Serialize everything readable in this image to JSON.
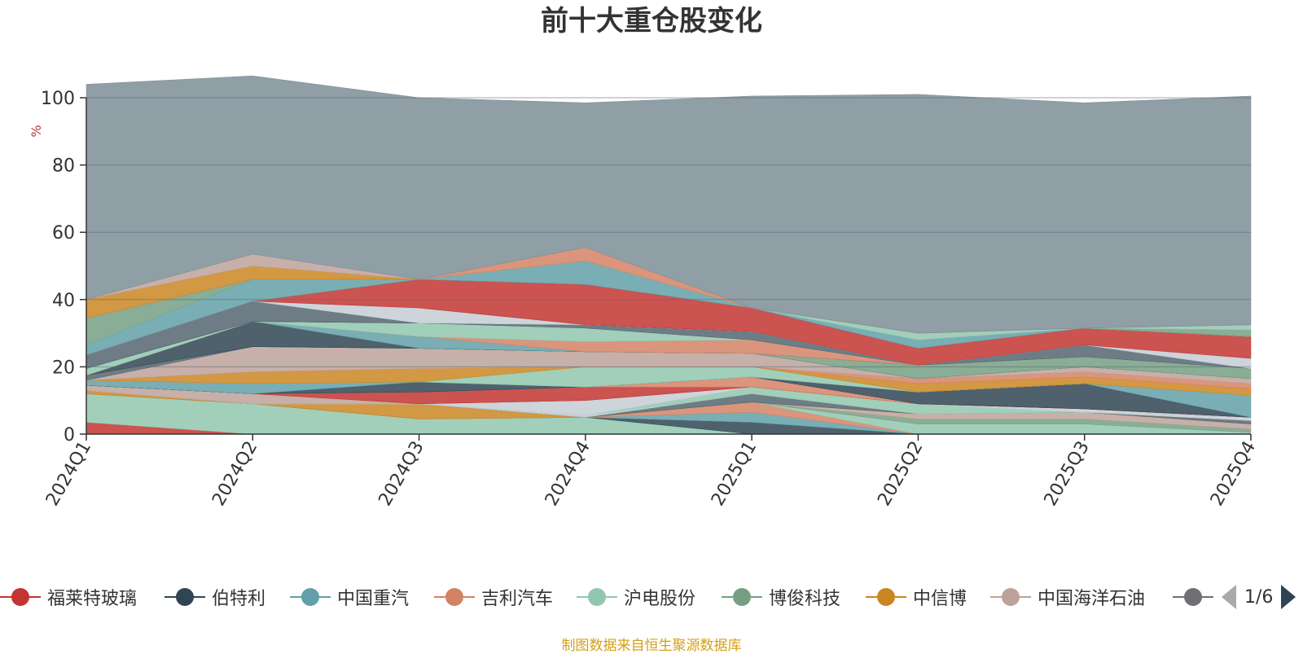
{
  "title": "前十大重仓股变化",
  "source": "制图数据来自恒生聚源数据库",
  "pager": "1/6",
  "chart_data": {
    "type": "area",
    "stacked": true,
    "ylabel": "%",
    "ylim": [
      0,
      100
    ],
    "yticks": [
      0,
      20,
      40,
      60,
      80,
      100
    ],
    "categories": [
      "2024Q1",
      "2024Q2",
      "2024Q3",
      "2024Q4",
      "2025Q1",
      "2025Q2",
      "2025Q3",
      "2025Q4"
    ],
    "series": [
      {
        "name": "福莱特玻璃",
        "color": "#c23531",
        "values": [
          3.5,
          0,
          0,
          0,
          0,
          0,
          0,
          0
        ]
      },
      {
        "name": "",
        "color": "#91c7ae",
        "values": [
          8.5,
          9,
          4.5,
          5,
          0,
          0,
          0,
          0
        ]
      },
      {
        "name": "",
        "color": "#2f4554",
        "values": [
          0,
          0,
          0,
          0,
          3.5,
          0,
          0,
          0
        ]
      },
      {
        "name": "",
        "color": "#61a0a8",
        "values": [
          0,
          0,
          0,
          0,
          3,
          0,
          0,
          0
        ]
      },
      {
        "name": "",
        "color": "#d48265",
        "values": [
          0,
          0,
          0,
          0,
          3,
          0,
          0,
          0
        ]
      },
      {
        "name": "",
        "color": "#91c7ae",
        "values": [
          0,
          0,
          0,
          0,
          0,
          3,
          3,
          0.5
        ]
      },
      {
        "name": "",
        "color": "#749f83",
        "values": [
          0,
          0,
          0,
          0,
          0,
          1.5,
          1.5,
          1
        ]
      },
      {
        "name": "",
        "color": "#bda29a",
        "values": [
          0,
          0,
          0,
          0,
          0,
          1.5,
          2,
          1.5
        ]
      },
      {
        "name": "",
        "color": "#ca8622",
        "values": [
          1,
          0,
          4.5,
          0,
          0,
          0,
          0,
          0
        ]
      },
      {
        "name": "",
        "color": "#546570",
        "values": [
          0,
          0,
          0,
          0,
          2.5,
          0,
          0,
          1
        ]
      },
      {
        "name": "",
        "color": "#c4ccd3",
        "values": [
          0,
          0,
          0,
          0.5,
          0,
          0,
          0,
          1
        ]
      },
      {
        "name": "",
        "color": "#91c7ae",
        "values": [
          0,
          0,
          0,
          0,
          2,
          3,
          0,
          0
        ]
      },
      {
        "name": "",
        "color": "#c4ccd3",
        "values": [
          0,
          0,
          0,
          4.5,
          0,
          0,
          0,
          0
        ]
      },
      {
        "name": "",
        "color": "#c4ccd3",
        "values": [
          0,
          0,
          0,
          0,
          0,
          0,
          1,
          0
        ]
      },
      {
        "name": "",
        "color": "#bda29a",
        "values": [
          1.5,
          3,
          0,
          0,
          0,
          0,
          0,
          0
        ]
      },
      {
        "name": "",
        "color": "#c23531",
        "values": [
          0,
          0,
          3.5,
          4,
          0,
          0,
          0,
          0
        ]
      },
      {
        "name": "",
        "color": "#d48265",
        "values": [
          0,
          0,
          0,
          0,
          3,
          0,
          0,
          0
        ]
      },
      {
        "name": "",
        "color": "#2f4554",
        "values": [
          0,
          0,
          3,
          0,
          0,
          3.5,
          7.5,
          0
        ]
      },
      {
        "name": "",
        "color": "#61a0a8",
        "values": [
          1.5,
          3,
          0,
          0,
          0,
          0,
          0,
          6.5
        ]
      },
      {
        "name": "",
        "color": "#91c7ae",
        "values": [
          0,
          0,
          0,
          6,
          3,
          0,
          0,
          0
        ]
      },
      {
        "name": "",
        "color": "#ca8622",
        "values": [
          0,
          3.5,
          4,
          0,
          0,
          2.5,
          2,
          2
        ]
      },
      {
        "name": "",
        "color": "#d48265",
        "values": [
          0,
          0,
          0,
          0,
          0,
          1.5,
          1.5,
          1.5
        ]
      },
      {
        "name": "",
        "color": "#bda29a",
        "values": [
          0,
          7.5,
          6,
          4.5,
          4,
          0,
          1.5,
          1.5
        ]
      },
      {
        "name": "",
        "color": "#546570",
        "values": [
          1.5,
          0,
          0,
          0,
          0,
          0,
          0,
          0
        ]
      },
      {
        "name": "",
        "color": "#749f83",
        "values": [
          0,
          0,
          0,
          0,
          0,
          4,
          3,
          3
        ]
      },
      {
        "name": "",
        "color": "#2f4554",
        "values": [
          0,
          7.5,
          0,
          0,
          0,
          0,
          0,
          0
        ]
      },
      {
        "name": "",
        "color": "#61a0a8",
        "values": [
          0,
          0,
          3.5,
          0,
          0,
          0,
          0,
          0
        ]
      },
      {
        "name": "",
        "color": "#d48265",
        "values": [
          0,
          0,
          0,
          3,
          4,
          0,
          0,
          0
        ]
      },
      {
        "name": "",
        "color": "#91c7ae",
        "values": [
          2,
          0,
          4,
          4,
          0,
          0,
          0,
          0
        ]
      },
      {
        "name": "",
        "color": "#546570",
        "values": [
          0,
          0,
          0,
          1,
          2.5,
          0,
          3.5,
          0
        ]
      },
      {
        "name": "",
        "color": "#546570",
        "values": [
          4,
          6,
          0,
          0,
          0,
          0,
          0,
          0
        ]
      },
      {
        "name": "",
        "color": "#c4ccd3",
        "values": [
          0,
          0,
          4.5,
          0,
          0,
          0,
          0,
          0
        ]
      },
      {
        "name": "",
        "color": "#c4ccd3",
        "values": [
          0,
          0,
          0,
          0,
          0,
          0,
          0,
          3
        ]
      },
      {
        "name": "",
        "color": "#c23531",
        "values": [
          0,
          0,
          8.5,
          12,
          7,
          5,
          5,
          6.5
        ]
      },
      {
        "name": "",
        "color": "#61a0a8",
        "values": [
          3,
          6.5,
          0,
          7,
          0,
          2.5,
          0,
          0
        ]
      },
      {
        "name": "",
        "color": "#91c7ae",
        "values": [
          0,
          0,
          0,
          0,
          0,
          2,
          0,
          0
        ]
      },
      {
        "name": "",
        "color": "#749f83",
        "values": [
          8,
          0,
          0,
          0,
          0,
          0,
          0,
          2
        ]
      },
      {
        "name": "",
        "color": "#91c7ae",
        "values": [
          0,
          0,
          0,
          0,
          0,
          0,
          0,
          1.5
        ]
      },
      {
        "name": "",
        "color": "#d48265",
        "values": [
          0,
          0,
          0,
          4,
          0,
          0,
          0,
          0
        ]
      },
      {
        "name": "",
        "color": "#ca8622",
        "values": [
          5.5,
          4,
          0,
          0,
          0,
          0,
          0,
          0
        ]
      },
      {
        "name": "",
        "color": "#bda29a",
        "values": [
          0,
          3.5,
          0,
          0,
          0,
          0,
          0,
          0
        ]
      },
      {
        "name": "",
        "color": "#7d8d97",
        "values": [
          64,
          53,
          54,
          43,
          63,
          71,
          67,
          68
        ]
      }
    ]
  },
  "legend": {
    "items": [
      {
        "label": "福莱特玻璃",
        "color": "#c23531"
      },
      {
        "label": "伯特利",
        "color": "#2f4554"
      },
      {
        "label": "中国重汽",
        "color": "#61a0a8"
      },
      {
        "label": "吉利汽车",
        "color": "#d48265"
      },
      {
        "label": "沪电股份",
        "color": "#91c7ae"
      },
      {
        "label": "博俊科技",
        "color": "#749f83"
      },
      {
        "label": "中信博",
        "color": "#ca8622"
      },
      {
        "label": "中国海洋石油",
        "color": "#bda29a"
      },
      {
        "label": "",
        "color": "#6e7074"
      }
    ]
  }
}
